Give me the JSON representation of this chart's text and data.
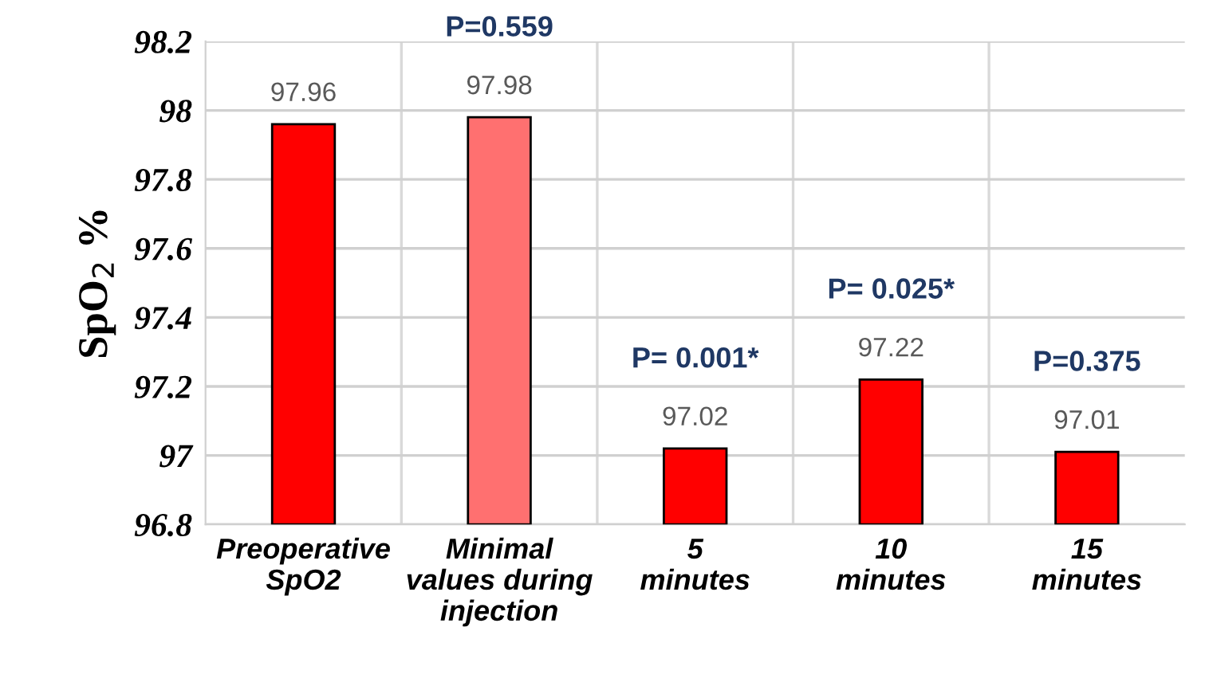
{
  "chart_data": {
    "type": "bar",
    "ylabel": "SpO$_{2}$ %",
    "categories": [
      "Preoperative\nSpO2",
      "Minimal\nvalues during\ninjection",
      "5\nminutes",
      "10\nminutes",
      "15\nminutes"
    ],
    "values": [
      97.96,
      97.98,
      97.02,
      97.22,
      97.01
    ],
    "colors": [
      "#ff0000",
      "#ff7070",
      "#ff0000",
      "#ff0000",
      "#ff0000"
    ],
    "data_labels": true,
    "ylim": [
      96.8,
      98.2
    ],
    "yticks": [
      96.8,
      97,
      97.2,
      97.4,
      97.6,
      97.8,
      98,
      98.2
    ],
    "grid": true,
    "annotations": [
      {
        "text": "P=0.559",
        "x": "Minimal\nvalues during\ninjection",
        "y": 97.98
      },
      {
        "text": "P= 0.001*",
        "x": "5\nminutes",
        "y": 97.02
      },
      {
        "text": "P= 0.025*",
        "x": "10\nminutes",
        "y": 97.22
      },
      {
        "text": "P=0.375",
        "x": "15\nminutes",
        "y": 97.01
      }
    ]
  }
}
